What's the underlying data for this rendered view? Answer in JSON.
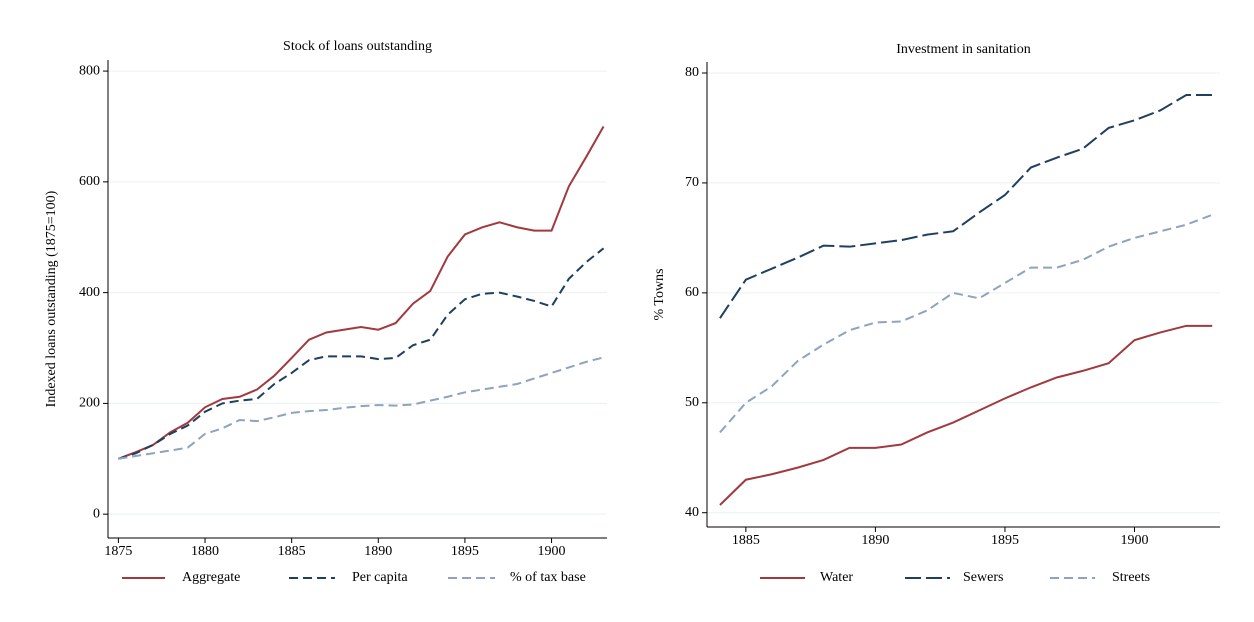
{
  "chart_data": [
    {
      "type": "line",
      "title": "Stock of loans outstanding",
      "y_label": "Indexed loans outstanding (1875=100)",
      "x": [
        1875,
        1876,
        1877,
        1878,
        1879,
        1880,
        1881,
        1882,
        1883,
        1884,
        1885,
        1886,
        1887,
        1888,
        1889,
        1890,
        1891,
        1892,
        1893,
        1894,
        1895,
        1896,
        1897,
        1898,
        1899,
        1900,
        1901,
        1902,
        1903
      ],
      "series": [
        {
          "name": "Aggregate",
          "color": "#a03a3f",
          "style": "solid",
          "values": [
            100,
            112,
            125,
            148,
            165,
            193,
            208,
            212,
            225,
            250,
            282,
            315,
            328,
            333,
            338,
            333,
            345,
            380,
            403,
            465,
            505,
            518,
            527,
            518,
            512,
            512,
            592,
            645,
            700
          ]
        },
        {
          "name": "Per capita",
          "color": "#1f3f60",
          "style": "dash",
          "values": [
            100,
            110,
            125,
            145,
            160,
            185,
            200,
            205,
            208,
            235,
            255,
            278,
            285,
            285,
            285,
            280,
            282,
            305,
            315,
            360,
            388,
            398,
            400,
            393,
            385,
            375,
            425,
            455,
            480
          ]
        },
        {
          "name": "% of tax base",
          "color": "#8ea3bf",
          "style": "dash",
          "values": [
            100,
            105,
            110,
            115,
            120,
            145,
            155,
            170,
            168,
            175,
            183,
            186,
            188,
            192,
            195,
            197,
            196,
            198,
            205,
            212,
            220,
            225,
            230,
            235,
            245,
            255,
            265,
            275,
            283
          ]
        }
      ],
      "xlim": [
        1874.4,
        1903.2
      ],
      "xticks": [
        1875,
        1880,
        1885,
        1890,
        1895,
        1900
      ],
      "ylim": [
        -43,
        820
      ],
      "yticks": [
        0,
        200,
        400,
        600,
        800
      ],
      "grid": true,
      "legend": "bottom"
    },
    {
      "type": "line",
      "title": "Investment in sanitation",
      "y_label": "% Towns",
      "x": [
        1884,
        1885,
        1886,
        1887,
        1888,
        1889,
        1890,
        1891,
        1892,
        1893,
        1894,
        1895,
        1896,
        1897,
        1898,
        1899,
        1900,
        1901,
        1902,
        1903
      ],
      "series": [
        {
          "name": "Water",
          "color": "#a03a3f",
          "style": "solid",
          "values": [
            40.7,
            43,
            43.5,
            44.1,
            44.8,
            45.9,
            45.9,
            46.2,
            47.3,
            48.2,
            49.3,
            50.4,
            51.4,
            52.3,
            52.9,
            53.6,
            55.7,
            56.4,
            57.0,
            57.0
          ]
        },
        {
          "name": "Sewers",
          "color": "#1f3f60",
          "style": "longdash",
          "values": [
            57.7,
            61.2,
            62.2,
            63.2,
            64.3,
            64.2,
            64.5,
            64.8,
            65.3,
            65.6,
            67.3,
            68.9,
            71.4,
            72.3,
            73.1,
            75.0,
            75.7,
            76.6,
            78.0,
            78.0
          ]
        },
        {
          "name": "Streets",
          "color": "#8ea3bf",
          "style": "dash",
          "values": [
            47.3,
            50.0,
            51.5,
            53.8,
            55.3,
            56.6,
            57.3,
            57.4,
            58.4,
            60.0,
            59.5,
            60.9,
            62.3,
            62.3,
            63.0,
            64.2,
            65.0,
            65.6,
            66.2,
            67.1
          ]
        }
      ],
      "xlim": [
        1883.5,
        1903.3
      ],
      "xticks": [
        1885,
        1890,
        1895,
        1900
      ],
      "ylim": [
        38.7,
        81
      ],
      "yticks": [
        40,
        50,
        60,
        70,
        80
      ],
      "grid": true,
      "legend": "bottom"
    }
  ]
}
